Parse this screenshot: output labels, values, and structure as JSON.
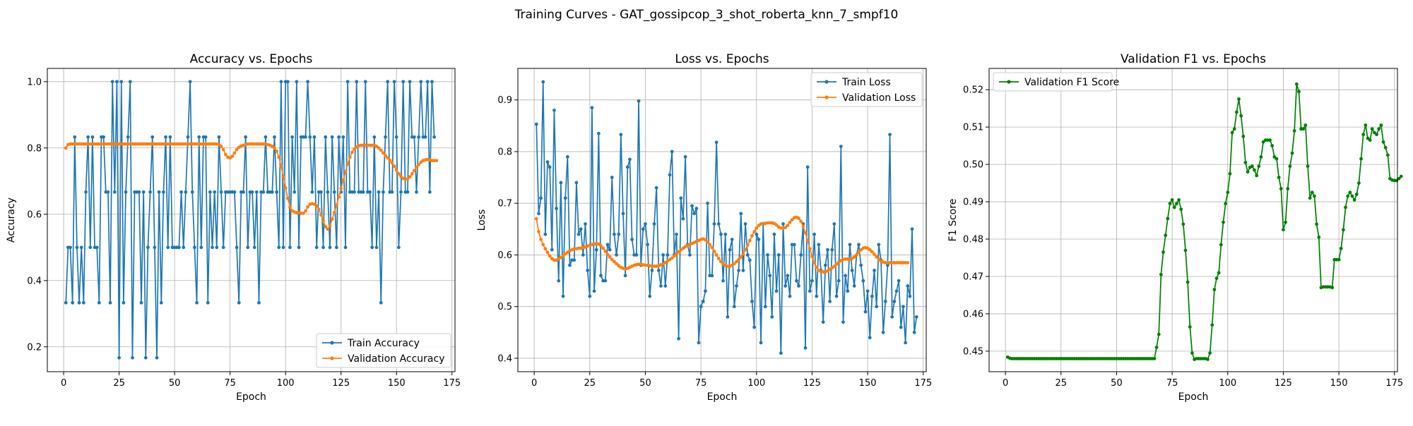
{
  "suptitle": "Training Curves - GAT_gossipcop_3_shot_roberta_knn_7_smpf10",
  "chart_data": [
    {
      "type": "line",
      "title": "Accuracy vs. Epochs",
      "xlabel": "Epoch",
      "ylabel": "Accuracy",
      "xlim": [
        -7.35,
        176.35
      ],
      "ylim": [
        0.125,
        1.04
      ],
      "xticks": [
        0,
        25,
        50,
        75,
        100,
        125,
        150,
        175
      ],
      "yticks": [
        0.2,
        0.4,
        0.6,
        0.8,
        1.0
      ],
      "ytick_labels": [
        "0.2",
        "0.4",
        "0.6",
        "0.8",
        "1.0"
      ],
      "grid": true,
      "legend_position": "lower-right",
      "x_start": 1,
      "series": [
        {
          "name": "Train Accuracy",
          "color": "#1f77b4",
          "values": [
            0.333,
            0.5,
            0.5,
            0.333,
            0.833,
            0.5,
            0.333,
            0.5,
            0.333,
            0.667,
            0.833,
            0.5,
            0.833,
            0.5,
            0.5,
            0.333,
            0.833,
            0.833,
            0.667,
            0.667,
            0.333,
            1.0,
            0.667,
            1.0,
            0.167,
            1.0,
            0.333,
            0.667,
            0.833,
            1.0,
            0.167,
            0.667,
            0.667,
            0.667,
            0.333,
            0.667,
            0.167,
            0.5,
            0.667,
            0.833,
            0.5,
            0.167,
            0.667,
            0.333,
            0.667,
            0.833,
            0.5,
            0.833,
            0.5,
            0.5,
            0.5,
            0.5,
            0.667,
            0.5,
            0.667,
            0.833,
            1.0,
            0.667,
            0.5,
            0.333,
            0.833,
            0.5,
            0.833,
            0.833,
            0.333,
            0.667,
            0.5,
            0.667,
            0.5,
            0.833,
            0.667,
            0.5,
            0.667,
            0.667,
            0.667,
            0.667,
            0.667,
            0.5,
            0.333,
            0.667,
            0.667,
            0.833,
            0.5,
            0.667,
            0.667,
            0.5,
            0.667,
            0.333,
            0.667,
            0.667,
            0.833,
            0.667,
            0.667,
            0.667,
            0.833,
            0.667,
            0.5,
            1.0,
            0.5,
            1.0,
            1.0,
            0.5,
            0.833,
            0.667,
            1.0,
            0.5,
            0.833,
            0.833,
            0.833,
            1.0,
            0.833,
            0.667,
            0.833,
            0.5,
            0.667,
            0.667,
            0.5,
            0.833,
            0.667,
            0.5,
            0.833,
            0.667,
            0.5,
            0.833,
            0.667,
            0.833,
            0.5,
            1.0,
            0.667,
            0.667,
            0.667,
            1.0,
            0.667,
            0.667,
            0.667,
            1.0,
            0.667,
            0.667,
            0.5,
            0.833,
            0.5,
            0.667,
            0.333,
            0.667,
            0.833,
            1.0,
            0.667,
            0.667,
            1.0,
            0.833,
            0.5,
            0.667,
            1.0,
            0.667,
            0.667,
            1.0,
            0.833,
            0.833,
            0.667,
            0.833,
            1.0,
            0.833,
            0.833,
            1.0,
            0.667,
            1.0,
            0.833
          ]
        },
        {
          "name": "Validation Accuracy",
          "color": "#ff7f0e",
          "values": [
            0.8,
            0.81,
            0.812,
            0.812,
            0.812,
            0.812,
            0.812,
            0.812,
            0.812,
            0.812,
            0.812,
            0.812,
            0.812,
            0.812,
            0.812,
            0.812,
            0.812,
            0.812,
            0.812,
            0.812,
            0.812,
            0.812,
            0.812,
            0.812,
            0.812,
            0.812,
            0.812,
            0.812,
            0.812,
            0.812,
            0.812,
            0.812,
            0.812,
            0.812,
            0.812,
            0.812,
            0.812,
            0.812,
            0.812,
            0.812,
            0.812,
            0.812,
            0.812,
            0.812,
            0.812,
            0.812,
            0.812,
            0.812,
            0.812,
            0.812,
            0.812,
            0.812,
            0.812,
            0.812,
            0.812,
            0.812,
            0.812,
            0.812,
            0.812,
            0.812,
            0.812,
            0.812,
            0.812,
            0.812,
            0.812,
            0.812,
            0.812,
            0.812,
            0.812,
            0.81,
            0.805,
            0.795,
            0.78,
            0.772,
            0.77,
            0.775,
            0.785,
            0.795,
            0.802,
            0.806,
            0.808,
            0.81,
            0.812,
            0.812,
            0.812,
            0.812,
            0.812,
            0.812,
            0.812,
            0.812,
            0.812,
            0.81,
            0.808,
            0.805,
            0.8,
            0.79,
            0.772,
            0.745,
            0.712,
            0.68,
            0.648,
            0.622,
            0.61,
            0.607,
            0.605,
            0.605,
            0.603,
            0.603,
            0.61,
            0.622,
            0.63,
            0.632,
            0.63,
            0.625,
            0.615,
            0.598,
            0.58,
            0.562,
            0.555,
            0.565,
            0.585,
            0.605,
            0.628,
            0.652,
            0.678,
            0.703,
            0.728,
            0.752,
            0.772,
            0.787,
            0.797,
            0.803,
            0.807,
            0.808,
            0.808,
            0.808,
            0.808,
            0.808,
            0.808,
            0.808,
            0.805,
            0.8,
            0.793,
            0.785,
            0.777,
            0.77,
            0.763,
            0.755,
            0.745,
            0.733,
            0.722,
            0.713,
            0.708,
            0.706,
            0.707,
            0.713,
            0.722,
            0.732,
            0.742,
            0.75,
            0.757,
            0.762,
            0.764,
            0.765,
            0.764,
            0.762,
            0.762,
            0.762
          ]
        }
      ]
    },
    {
      "type": "line",
      "title": "Loss vs. Epochs",
      "xlabel": "Epoch",
      "ylabel": "Loss",
      "xlim": [
        -7.35,
        176.35
      ],
      "ylim": [
        0.374,
        0.961
      ],
      "xticks": [
        0,
        25,
        50,
        75,
        100,
        125,
        150,
        175
      ],
      "yticks": [
        0.4,
        0.5,
        0.6,
        0.7,
        0.8,
        0.9
      ],
      "ytick_labels": [
        "0.4",
        "0.5",
        "0.6",
        "0.7",
        "0.8",
        "0.9"
      ],
      "grid": true,
      "legend_position": "upper-right",
      "x_start": 1,
      "series": [
        {
          "name": "Train Loss",
          "color": "#1f77b4",
          "values": [
            0.853,
            0.68,
            0.71,
            0.935,
            0.64,
            0.78,
            0.77,
            0.61,
            0.88,
            0.69,
            0.55,
            0.74,
            0.52,
            0.71,
            0.79,
            0.58,
            0.59,
            0.59,
            0.74,
            0.64,
            0.65,
            0.6,
            0.66,
            0.57,
            0.52,
            0.885,
            0.53,
            0.61,
            0.835,
            0.56,
            0.55,
            0.55,
            0.62,
            0.61,
            0.75,
            0.64,
            0.6,
            0.64,
            0.833,
            0.68,
            0.56,
            0.77,
            0.785,
            0.63,
            0.6,
            0.6,
            0.898,
            0.58,
            0.65,
            0.66,
            0.62,
            0.52,
            0.57,
            0.66,
            0.73,
            0.57,
            0.54,
            0.6,
            0.54,
            0.6,
            0.755,
            0.8,
            0.6,
            0.64,
            0.438,
            0.71,
            0.67,
            0.79,
            0.62,
            0.6,
            0.695,
            0.68,
            0.69,
            0.43,
            0.5,
            0.51,
            0.53,
            0.7,
            0.56,
            0.56,
            0.66,
            0.818,
            0.66,
            0.64,
            0.55,
            0.64,
            0.48,
            0.61,
            0.63,
            0.5,
            0.54,
            0.57,
            0.68,
            0.57,
            0.66,
            0.6,
            0.59,
            0.51,
            0.46,
            0.64,
            0.63,
            0.43,
            0.66,
            0.5,
            0.6,
            0.56,
            0.48,
            0.64,
            0.53,
            0.6,
            0.41,
            0.66,
            0.54,
            0.56,
            0.52,
            0.62,
            0.62,
            0.55,
            0.54,
            0.6,
            0.66,
            0.42,
            0.77,
            0.53,
            0.55,
            0.64,
            0.52,
            0.62,
            0.57,
            0.47,
            0.58,
            0.61,
            0.51,
            0.61,
            0.66,
            0.52,
            0.55,
            0.81,
            0.47,
            0.56,
            0.53,
            0.62,
            0.57,
            0.54,
            0.6,
            0.62,
            0.58,
            0.55,
            0.49,
            0.53,
            0.44,
            0.52,
            0.57,
            0.5,
            0.62,
            0.59,
            0.45,
            0.51,
            0.58,
            0.833,
            0.48,
            0.51,
            0.53,
            0.55,
            0.46,
            0.5,
            0.43,
            0.54,
            0.52,
            0.65,
            0.45,
            0.48
          ]
        },
        {
          "name": "Validation Loss",
          "color": "#ff7f0e",
          "values": [
            0.67,
            0.645,
            0.63,
            0.62,
            0.612,
            0.605,
            0.598,
            0.593,
            0.59,
            0.59,
            0.592,
            0.595,
            0.598,
            0.602,
            0.605,
            0.608,
            0.61,
            0.612,
            0.612,
            0.613,
            0.613,
            0.614,
            0.615,
            0.617,
            0.619,
            0.62,
            0.621,
            0.622,
            0.621,
            0.618,
            0.613,
            0.607,
            0.601,
            0.596,
            0.591,
            0.587,
            0.583,
            0.579,
            0.576,
            0.574,
            0.573,
            0.574,
            0.576,
            0.578,
            0.58,
            0.581,
            0.582,
            0.582,
            0.581,
            0.58,
            0.58,
            0.579,
            0.578,
            0.578,
            0.578,
            0.579,
            0.581,
            0.583,
            0.585,
            0.588,
            0.591,
            0.594,
            0.598,
            0.602,
            0.606,
            0.61,
            0.613,
            0.616,
            0.618,
            0.62,
            0.622,
            0.624,
            0.626,
            0.628,
            0.63,
            0.631,
            0.629,
            0.625,
            0.62,
            0.614,
            0.607,
            0.6,
            0.593,
            0.587,
            0.583,
            0.58,
            0.578,
            0.578,
            0.58,
            0.583,
            0.587,
            0.591,
            0.596,
            0.602,
            0.61,
            0.619,
            0.628,
            0.637,
            0.645,
            0.652,
            0.657,
            0.66,
            0.661,
            0.661,
            0.662,
            0.662,
            0.662,
            0.661,
            0.658,
            0.654,
            0.652,
            0.652,
            0.653,
            0.657,
            0.663,
            0.668,
            0.672,
            0.673,
            0.671,
            0.665,
            0.655,
            0.643,
            0.628,
            0.612,
            0.597,
            0.585,
            0.576,
            0.57,
            0.568,
            0.567,
            0.568,
            0.569,
            0.572,
            0.575,
            0.578,
            0.582,
            0.586,
            0.589,
            0.591,
            0.592,
            0.592,
            0.592,
            0.593,
            0.596,
            0.6,
            0.605,
            0.61,
            0.613,
            0.614,
            0.613,
            0.61,
            0.606,
            0.601,
            0.596,
            0.592,
            0.588,
            0.586,
            0.585,
            0.585,
            0.585,
            0.585,
            0.585,
            0.585,
            0.585,
            0.585,
            0.585,
            0.585,
            0.585
          ]
        }
      ]
    },
    {
      "type": "line",
      "title": "Validation F1 vs. Epochs",
      "xlabel": "Epoch",
      "ylabel": "F1 Score",
      "xlim": [
        -7.35,
        176.35
      ],
      "ylim": [
        0.4445,
        0.5257
      ],
      "xticks": [
        0,
        25,
        50,
        75,
        100,
        125,
        150,
        175
      ],
      "yticks": [
        0.45,
        0.46,
        0.47,
        0.48,
        0.49,
        0.5,
        0.51,
        0.52
      ],
      "ytick_labels": [
        "0.45",
        "0.46",
        "0.47",
        "0.48",
        "0.49",
        "0.50",
        "0.51",
        "0.52"
      ],
      "grid": true,
      "legend_position": "upper-left",
      "x_start": 1,
      "series": [
        {
          "name": "Validation F1 Score",
          "color": "#008000",
          "values": [
            0.4484,
            0.4481,
            0.448,
            0.448,
            0.448,
            0.448,
            0.448,
            0.448,
            0.448,
            0.448,
            0.448,
            0.448,
            0.448,
            0.448,
            0.448,
            0.448,
            0.448,
            0.448,
            0.448,
            0.448,
            0.448,
            0.448,
            0.448,
            0.448,
            0.448,
            0.448,
            0.448,
            0.448,
            0.448,
            0.448,
            0.448,
            0.448,
            0.448,
            0.448,
            0.448,
            0.448,
            0.448,
            0.448,
            0.448,
            0.448,
            0.448,
            0.448,
            0.448,
            0.448,
            0.448,
            0.448,
            0.448,
            0.448,
            0.448,
            0.448,
            0.448,
            0.448,
            0.448,
            0.448,
            0.448,
            0.448,
            0.448,
            0.448,
            0.448,
            0.448,
            0.448,
            0.448,
            0.448,
            0.448,
            0.448,
            0.448,
            0.448,
            0.451,
            0.4545,
            0.4705,
            0.4765,
            0.481,
            0.4855,
            0.4895,
            0.4905,
            0.4885,
            0.4895,
            0.4905,
            0.488,
            0.484,
            0.477,
            0.4685,
            0.4565,
            0.4495,
            0.4478,
            0.448,
            0.448,
            0.448,
            0.448,
            0.448,
            0.4478,
            0.4495,
            0.457,
            0.4665,
            0.4695,
            0.471,
            0.4785,
            0.4845,
            0.4895,
            0.4925,
            0.4975,
            0.5085,
            0.5095,
            0.514,
            0.5175,
            0.513,
            0.5075,
            0.5005,
            0.498,
            0.4992,
            0.4995,
            0.4985,
            0.497,
            0.4995,
            0.502,
            0.506,
            0.5065,
            0.5065,
            0.5065,
            0.505,
            0.502,
            0.5015,
            0.4965,
            0.4935,
            0.4825,
            0.4845,
            0.4935,
            0.4995,
            0.503,
            0.509,
            0.5215,
            0.5195,
            0.5095,
            0.5095,
            0.5105,
            0.4995,
            0.491,
            0.4925,
            0.4915,
            0.484,
            0.4805,
            0.467,
            0.4672,
            0.4672,
            0.4672,
            0.4672,
            0.467,
            0.4745,
            0.4745,
            0.4745,
            0.4775,
            0.4825,
            0.4885,
            0.4915,
            0.4925,
            0.4915,
            0.4905,
            0.492,
            0.495,
            0.5015,
            0.508,
            0.5105,
            0.507,
            0.5065,
            0.5095,
            0.5085,
            0.508,
            0.5095,
            0.5105,
            0.506,
            0.5045,
            0.5025,
            0.4962,
            0.4958,
            0.4957,
            0.4957,
            0.4962,
            0.4968
          ]
        }
      ]
    }
  ]
}
